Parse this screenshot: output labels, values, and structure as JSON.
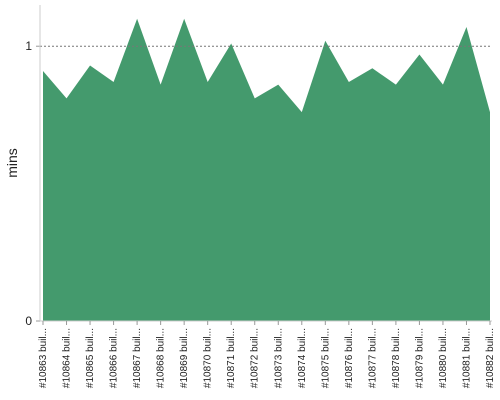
{
  "chart_data": {
    "type": "area",
    "y_label": "mins",
    "categories": [
      "#10863 buil...",
      "#10864 buil...",
      "#10865 buil...",
      "#10866 buil...",
      "#10867 buil...",
      "#10868 buil...",
      "#10869 buil...",
      "#10870 buil...",
      "#10871 buil...",
      "#10872 buil...",
      "#10873 buil...",
      "#10874 buil...",
      "#10875 buil...",
      "#10876 buil...",
      "#10877 buil...",
      "#10878 buil...",
      "#10879 buil...",
      "#10880 buil...",
      "#10881 buil...",
      "#10882 buil..."
    ],
    "values": [
      0.91,
      0.81,
      0.93,
      0.87,
      1.1,
      0.86,
      1.1,
      0.87,
      1.01,
      0.81,
      0.86,
      0.76,
      1.02,
      0.87,
      0.92,
      0.86,
      0.97,
      0.86,
      1.07,
      0.76
    ],
    "color": "#449a6d",
    "ylim": [
      0,
      1.15
    ],
    "yticks": [
      0,
      1
    ],
    "grid": true
  }
}
